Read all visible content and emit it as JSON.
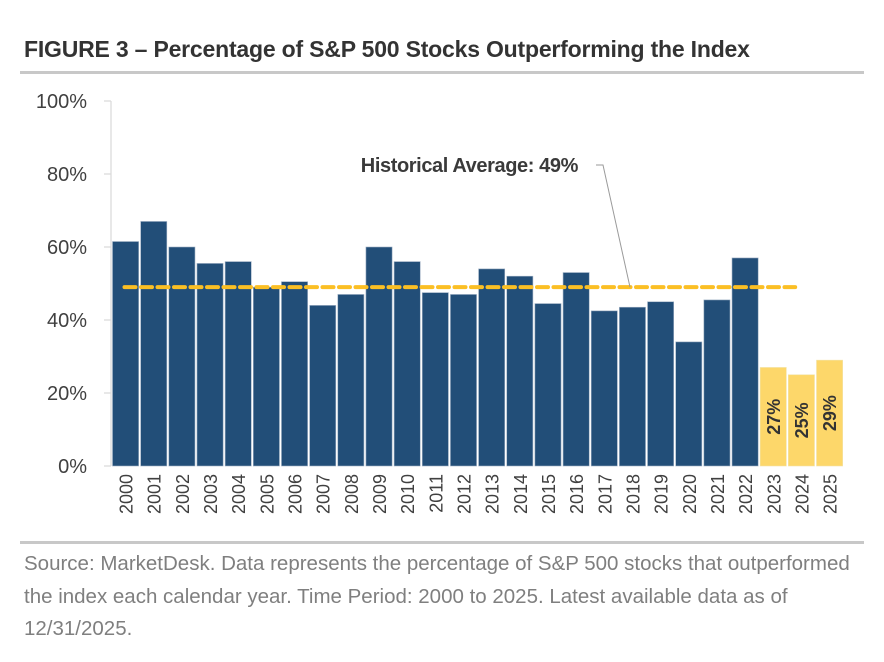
{
  "figure": {
    "title": "FIGURE 3 – Percentage of S&P 500 Stocks Outperforming the Index",
    "source_note": "Source: MarketDesk. Data represents the percentage of S&P 500 stocks that outperformed the index each calendar year. Time Period: 2000 to 2025. Latest available data as of 12/31/2025."
  },
  "colors": {
    "historical_bar": "#224e78",
    "recent_bar": "#fdd76a",
    "average_line": "#fbbf24",
    "axis_text": "#404040",
    "annotation_text": "#3a3a3a"
  },
  "chart_data": {
    "type": "bar",
    "title": "FIGURE 3 – Percentage of S&P 500 Stocks Outperforming the Index",
    "xlabel": "",
    "ylabel": "",
    "ylim": [
      0,
      100
    ],
    "y_ticks": [
      "0%",
      "20%",
      "40%",
      "60%",
      "80%",
      "100%"
    ],
    "y_tick_values": [
      0,
      20,
      40,
      60,
      80,
      100
    ],
    "grid": false,
    "categories": [
      "2000",
      "2001",
      "2002",
      "2003",
      "2004",
      "2005",
      "2006",
      "2007",
      "2008",
      "2009",
      "2010",
      "2011",
      "2012",
      "2013",
      "2014",
      "2015",
      "2016",
      "2017",
      "2018",
      "2019",
      "2020",
      "2021",
      "2022",
      "2023",
      "2024",
      "2025"
    ],
    "values": [
      61.5,
      67,
      60,
      55.5,
      56,
      49,
      50.5,
      44,
      47,
      60,
      56,
      47.5,
      47,
      54,
      52,
      44.5,
      53,
      42.5,
      43.5,
      45,
      34,
      45.5,
      57,
      27,
      25,
      29
    ],
    "highlighted_categories": [
      "2023",
      "2024",
      "2025"
    ],
    "data_labels": [
      {
        "category": "2023",
        "label": "27%"
      },
      {
        "category": "2024",
        "label": "25%"
      },
      {
        "category": "2025",
        "label": "29%"
      }
    ],
    "reference_line": {
      "value": 49,
      "style": "dashed",
      "span": [
        "2000",
        "2022"
      ],
      "annotation": "Historical Average: 49%"
    },
    "legend": "none"
  }
}
